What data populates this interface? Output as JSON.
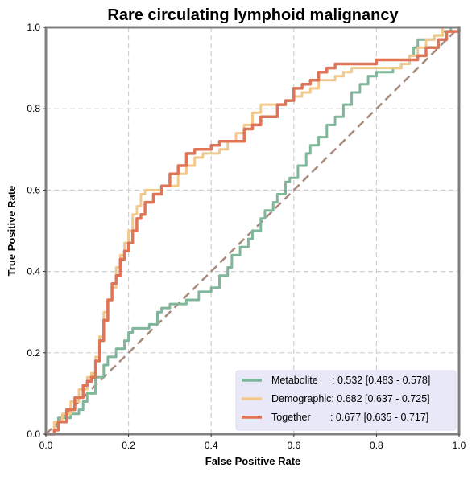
{
  "chart_data": {
    "type": "line",
    "title": "Rare circulating lymphoid malignancy",
    "xlabel": "False Positive Rate",
    "ylabel": "True Positive Rate",
    "xlim": [
      0,
      1
    ],
    "ylim": [
      0,
      1
    ],
    "xticks": [
      "0.0",
      "0.2",
      "0.4",
      "0.6",
      "0.8",
      "1.0"
    ],
    "yticks": [
      "0.0",
      "0.2",
      "0.4",
      "0.6",
      "0.8",
      "1.0"
    ],
    "grid": true,
    "legend_position": "lower-right",
    "series": [
      {
        "name": "Metabolite",
        "legend_label": "Metabolite     : 0.532 [0.483 - 0.578]",
        "color": "#7fb79b",
        "x": [
          0,
          0.02,
          0.03,
          0.06,
          0.08,
          0.09,
          0.1,
          0.12,
          0.14,
          0.15,
          0.17,
          0.19,
          0.2,
          0.21,
          0.23,
          0.25,
          0.27,
          0.28,
          0.3,
          0.32,
          0.34,
          0.35,
          0.37,
          0.39,
          0.4,
          0.42,
          0.44,
          0.45,
          0.47,
          0.49,
          0.5,
          0.52,
          0.53,
          0.55,
          0.56,
          0.58,
          0.59,
          0.61,
          0.63,
          0.64,
          0.66,
          0.68,
          0.7,
          0.72,
          0.74,
          0.76,
          0.78,
          0.8,
          0.82,
          0.84,
          0.86,
          0.88,
          0.89,
          0.9,
          0.92,
          0.94,
          0.96,
          0.98,
          1.0
        ],
        "y": [
          0,
          0.02,
          0.04,
          0.05,
          0.06,
          0.08,
          0.1,
          0.14,
          0.17,
          0.19,
          0.21,
          0.23,
          0.25,
          0.26,
          0.26,
          0.27,
          0.3,
          0.31,
          0.32,
          0.32,
          0.33,
          0.33,
          0.35,
          0.35,
          0.36,
          0.39,
          0.41,
          0.44,
          0.46,
          0.48,
          0.5,
          0.53,
          0.55,
          0.57,
          0.59,
          0.62,
          0.63,
          0.66,
          0.69,
          0.71,
          0.73,
          0.76,
          0.78,
          0.81,
          0.84,
          0.86,
          0.88,
          0.89,
          0.89,
          0.9,
          0.91,
          0.93,
          0.95,
          0.97,
          0.97,
          0.98,
          0.99,
          1.0,
          1.0
        ]
      },
      {
        "name": "Demographic",
        "legend_label": "Demographic: 0.682 [0.637 - 0.725]",
        "color": "#f2c98a",
        "x": [
          0,
          0.02,
          0.04,
          0.06,
          0.08,
          0.1,
          0.11,
          0.12,
          0.13,
          0.14,
          0.15,
          0.16,
          0.17,
          0.18,
          0.19,
          0.2,
          0.21,
          0.22,
          0.23,
          0.24,
          0.26,
          0.28,
          0.3,
          0.32,
          0.34,
          0.36,
          0.38,
          0.4,
          0.42,
          0.44,
          0.46,
          0.48,
          0.5,
          0.52,
          0.54,
          0.56,
          0.58,
          0.6,
          0.62,
          0.64,
          0.66,
          0.68,
          0.7,
          0.72,
          0.74,
          0.76,
          0.8,
          0.84,
          0.86,
          0.88,
          0.9,
          0.92,
          0.94,
          0.96,
          1.0
        ],
        "y": [
          0,
          0.03,
          0.05,
          0.08,
          0.11,
          0.14,
          0.15,
          0.19,
          0.24,
          0.3,
          0.33,
          0.36,
          0.41,
          0.44,
          0.47,
          0.5,
          0.54,
          0.56,
          0.59,
          0.6,
          0.6,
          0.61,
          0.61,
          0.64,
          0.66,
          0.68,
          0.69,
          0.69,
          0.7,
          0.72,
          0.74,
          0.76,
          0.79,
          0.81,
          0.81,
          0.81,
          0.82,
          0.83,
          0.84,
          0.85,
          0.87,
          0.87,
          0.88,
          0.89,
          0.9,
          0.9,
          0.9,
          0.9,
          0.91,
          0.93,
          0.95,
          0.97,
          0.98,
          1.0,
          1.0
        ]
      },
      {
        "name": "Together",
        "legend_label": "Together       : 0.677 [0.635 - 0.717]",
        "color": "#e07456",
        "x": [
          0,
          0.02,
          0.03,
          0.05,
          0.07,
          0.09,
          0.1,
          0.11,
          0.12,
          0.13,
          0.14,
          0.15,
          0.16,
          0.17,
          0.18,
          0.19,
          0.2,
          0.21,
          0.22,
          0.23,
          0.24,
          0.26,
          0.28,
          0.3,
          0.32,
          0.34,
          0.36,
          0.38,
          0.4,
          0.42,
          0.44,
          0.46,
          0.48,
          0.5,
          0.52,
          0.54,
          0.56,
          0.58,
          0.6,
          0.62,
          0.64,
          0.66,
          0.68,
          0.7,
          0.74,
          0.8,
          0.84,
          0.88,
          0.9,
          0.92,
          0.95,
          0.97,
          1.0
        ],
        "y": [
          0,
          0.01,
          0.03,
          0.06,
          0.09,
          0.12,
          0.13,
          0.14,
          0.18,
          0.23,
          0.28,
          0.33,
          0.37,
          0.39,
          0.43,
          0.45,
          0.47,
          0.5,
          0.53,
          0.54,
          0.57,
          0.59,
          0.61,
          0.64,
          0.66,
          0.69,
          0.7,
          0.7,
          0.71,
          0.72,
          0.72,
          0.72,
          0.75,
          0.76,
          0.78,
          0.78,
          0.81,
          0.82,
          0.85,
          0.86,
          0.87,
          0.89,
          0.9,
          0.91,
          0.91,
          0.92,
          0.92,
          0.92,
          0.93,
          0.95,
          0.97,
          0.99,
          1.0
        ]
      }
    ],
    "reference_line": {
      "type": "diagonal",
      "color": "#a88a7c",
      "x": [
        0,
        1
      ],
      "y": [
        0,
        1
      ]
    }
  },
  "colors": {
    "axes_frame": "#808080",
    "grid": "#cfcfcf",
    "legend_background": "#e8e8f8"
  }
}
